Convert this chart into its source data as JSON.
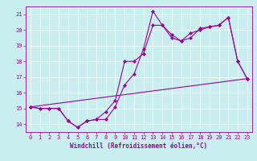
{
  "xlabel": "Windchill (Refroidissement éolien,°C)",
  "bg_color": "#c8eef0",
  "line_color": "#990099",
  "xlim": [
    -0.5,
    23.5
  ],
  "ylim": [
    13.5,
    21.5
  ],
  "yticks": [
    14,
    15,
    16,
    17,
    18,
    19,
    20,
    21
  ],
  "xticks": [
    0,
    1,
    2,
    3,
    4,
    5,
    6,
    7,
    8,
    9,
    10,
    11,
    12,
    13,
    14,
    15,
    16,
    17,
    18,
    19,
    20,
    21,
    22,
    23
  ],
  "line1_x": [
    0,
    1,
    2,
    3,
    4,
    5,
    6,
    7,
    8,
    9,
    10,
    11,
    12,
    13,
    14,
    15,
    16,
    17,
    18,
    19,
    20,
    21,
    22,
    23
  ],
  "line1_y": [
    15.1,
    15.0,
    15.0,
    15.0,
    14.2,
    13.8,
    14.2,
    14.3,
    14.3,
    15.1,
    16.5,
    17.2,
    18.8,
    21.2,
    20.3,
    19.5,
    19.3,
    19.8,
    20.0,
    20.2,
    20.3,
    20.8,
    18.0,
    16.9
  ],
  "line2_x": [
    0,
    1,
    2,
    3,
    4,
    5,
    6,
    7,
    8,
    9,
    10,
    11,
    12,
    13,
    14,
    15,
    16,
    17,
    18,
    19,
    20,
    21,
    22,
    23
  ],
  "line2_y": [
    15.1,
    15.0,
    15.0,
    15.0,
    14.2,
    13.8,
    14.2,
    14.3,
    14.8,
    15.5,
    18.0,
    18.0,
    18.5,
    20.3,
    20.3,
    19.7,
    19.3,
    19.5,
    20.1,
    20.2,
    20.3,
    20.8,
    18.0,
    16.9
  ],
  "line3_x": [
    0,
    23
  ],
  "line3_y": [
    15.1,
    16.9
  ],
  "figsize": [
    3.2,
    2.0
  ],
  "dpi": 100,
  "grid_color": "#ffffff",
  "spine_color": "#990099",
  "tick_labelsize": 5,
  "xlabel_fontsize": 5.5,
  "marker": "D",
  "markersize": 2.0,
  "linewidth": 0.8
}
